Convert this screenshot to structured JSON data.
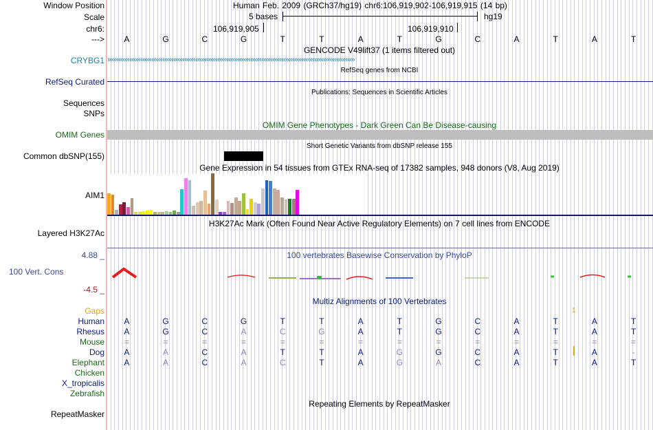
{
  "header": {
    "title_line": "Human Feb. 2009 (GRCh37/hg19)   chr6:106,919,902-106,919,915 (14 bp)",
    "window_position_label": "Window Position",
    "scale_label": "Scale",
    "scale_text": "5 bases",
    "scale_assembly": "hg19",
    "chrom_label": "chr6:",
    "coord1": "106,919,905",
    "coord2": "106,919,910",
    "strand_label": "--->"
  },
  "bases": [
    "A",
    "G",
    "C",
    "G",
    "T",
    "T",
    "A",
    "T",
    "G",
    "C",
    "A",
    "T",
    "A",
    "T"
  ],
  "tracks": {
    "gencode": {
      "title": "GENCODE V49lift37 (1 items filtered out)",
      "item_label": "CRYBG1",
      "arrows": "›››››››››››››››››››››››››››››››››››››››››››››››››››››››››››››››››››››››››››››››››››››››››››››››››››››››››››››››››››››››››››››››››››››››"
    },
    "refseq": {
      "title": "RefSeq genes from NCBI",
      "label": "RefSeq Curated"
    },
    "publications": {
      "title": "Publications: Sequences in Scientific Articles",
      "label1": "Sequences",
      "label2": "SNPs"
    },
    "omim": {
      "title": "OMIM Gene Phenotypes - Dark Green Can Be Disease-causing",
      "label": "OMIM Genes"
    },
    "dbsnp": {
      "title": "Short Genetic Variants from dbSNP release 155",
      "label": "Common dbSNP(155)"
    },
    "gtex": {
      "title": "Gene Expression in 54 tissues from GTEx RNA-seq of 17382 samples, 948 donors (V8, Aug 2019)",
      "label": "AIM1",
      "bars": [
        {
          "v": 0.52,
          "c": "#f5a623"
        },
        {
          "v": 0.48,
          "c": "#e8832a"
        },
        {
          "v": 0.12,
          "c": "#b0b0b0"
        },
        {
          "v": 0.25,
          "c": "#b81d3c"
        },
        {
          "v": 0.3,
          "c": "#7a1a3a"
        },
        {
          "v": 0.18,
          "c": "#d45da8"
        },
        {
          "v": 0.4,
          "c": "#b59a82"
        },
        {
          "v": 0.06,
          "c": "#dcdc40"
        },
        {
          "v": 0.06,
          "c": "#e8e040"
        },
        {
          "v": 0.08,
          "c": "#f0f020"
        },
        {
          "v": 0.1,
          "c": "#f4f000"
        },
        {
          "v": 0.12,
          "c": "#ffff00"
        },
        {
          "v": 0.06,
          "c": "#b4b450"
        },
        {
          "v": 0.06,
          "c": "#c8c878"
        },
        {
          "v": 0.06,
          "c": "#b8b8a0"
        },
        {
          "v": 0.08,
          "c": "#aad0a0"
        },
        {
          "v": 0.06,
          "c": "#90c060"
        },
        {
          "v": 0.1,
          "c": "#60b040"
        },
        {
          "v": 0.06,
          "c": "#a0a080"
        },
        {
          "v": 0.62,
          "c": "#20c8c8"
        },
        {
          "v": 0.88,
          "c": "#f080f0"
        },
        {
          "v": 0.84,
          "c": "#a0c0d0"
        },
        {
          "v": 0.22,
          "c": "#d0c0b0"
        },
        {
          "v": 0.3,
          "c": "#e0c8b0"
        },
        {
          "v": 0.34,
          "c": "#d0b8a0"
        },
        {
          "v": 0.58,
          "c": "#e8c098"
        },
        {
          "v": 0.26,
          "c": "#f0a070"
        },
        {
          "v": 1.0,
          "c": "#8a6a3a"
        },
        {
          "v": 0.36,
          "c": "#e0d0c0"
        },
        {
          "v": 0.06,
          "c": "#8a40c0"
        },
        {
          "v": 0.06,
          "c": "#a060d0"
        },
        {
          "v": 0.34,
          "c": "#ddb8b8"
        },
        {
          "v": 0.28,
          "c": "#b89080"
        },
        {
          "v": 0.42,
          "c": "#c8a890"
        },
        {
          "v": 0.34,
          "c": "#c0a890"
        },
        {
          "v": 0.52,
          "c": "#a0c040"
        },
        {
          "v": 0.14,
          "c": "#e0e040"
        },
        {
          "v": 0.38,
          "c": "#f0d000"
        },
        {
          "v": 0.3,
          "c": "#d0d0d0"
        },
        {
          "v": 0.26,
          "c": "#b0a0e0"
        },
        {
          "v": 0.64,
          "c": "#c8c8c8"
        },
        {
          "v": 0.84,
          "c": "#2060c0"
        },
        {
          "v": 0.82,
          "c": "#4080d8"
        },
        {
          "v": 0.64,
          "c": "#c0b0a0"
        },
        {
          "v": 0.6,
          "c": "#d0a898"
        },
        {
          "v": 0.42,
          "c": "#b8a898"
        },
        {
          "v": 0.36,
          "c": "#d0c0b8"
        },
        {
          "v": 0.38,
          "c": "#108020"
        },
        {
          "v": 0.38,
          "c": "#a08070"
        },
        {
          "v": 0.6,
          "c": "#f000f0"
        }
      ]
    },
    "h3k27ac": {
      "title": "H3K27Ac Mark (Often Found Near Active Regulatory Elements) on 7 cell lines from ENCODE",
      "label": "Layered H3K27Ac"
    },
    "phylop": {
      "title": "100 vertebrates Basewise Conservation by PhyloP",
      "label": "100 Vert. Cons",
      "max_label": "4.88 _",
      "min_label": "-4.5 _"
    },
    "multiz": {
      "title": "Multiz Alignments of 100 Vertebrates",
      "gaps_label": "Gaps",
      "gap_mark": "1",
      "species": [
        {
          "name": "Human",
          "color": "#0a1a7a",
          "seq": [
            "A",
            "G",
            "C",
            "G",
            "T",
            "T",
            "A",
            "T",
            "G",
            "C",
            "A",
            "T",
            "A",
            "T"
          ],
          "diff": [
            0,
            0,
            0,
            0,
            0,
            0,
            0,
            0,
            0,
            0,
            0,
            0,
            0,
            0
          ]
        },
        {
          "name": "Rhesus",
          "color": "#0a1a7a",
          "seq": [
            "A",
            "G",
            "C",
            "A",
            "C",
            "G",
            "A",
            "T",
            "G",
            "C",
            "A",
            "T",
            "A",
            "T"
          ],
          "diff": [
            0,
            0,
            0,
            1,
            1,
            1,
            0,
            0,
            0,
            0,
            0,
            0,
            0,
            0
          ]
        },
        {
          "name": "Mouse",
          "color": "#186a18",
          "seq": [
            "=",
            "=",
            "=",
            "=",
            "=",
            "=",
            "=",
            "=",
            "=",
            "=",
            "=",
            "=",
            "=",
            "="
          ],
          "diff": [
            1,
            1,
            1,
            1,
            1,
            1,
            1,
            1,
            1,
            1,
            1,
            1,
            1,
            1
          ]
        },
        {
          "name": "Dog",
          "color": "#0a1a7a",
          "seq": [
            "A",
            "A",
            "C",
            "A",
            "T",
            "T",
            "A",
            "G",
            "G",
            "C",
            "A",
            "T",
            "A",
            "-"
          ],
          "diff": [
            0,
            1,
            0,
            1,
            0,
            0,
            0,
            1,
            0,
            0,
            0,
            0,
            0,
            1
          ]
        },
        {
          "name": "Elephant",
          "color": "#186a18",
          "seq": [
            "A",
            "A",
            "C",
            "A",
            "C",
            "T",
            "A",
            "G",
            "A",
            "C",
            "A",
            "T",
            "A",
            "T"
          ],
          "diff": [
            0,
            1,
            0,
            1,
            1,
            0,
            0,
            1,
            1,
            0,
            0,
            0,
            0,
            0
          ]
        },
        {
          "name": "Chicken",
          "color": "#186a18",
          "seq": [],
          "diff": []
        },
        {
          "name": "X_tropicalis",
          "color": "#0a1a7a",
          "seq": [],
          "diff": []
        },
        {
          "name": "Zebrafish",
          "color": "#186a18",
          "seq": [],
          "diff": []
        }
      ]
    },
    "repeatmasker": {
      "title": "Repeating Elements by RepeatMasker",
      "label": "RepeatMasker"
    }
  }
}
